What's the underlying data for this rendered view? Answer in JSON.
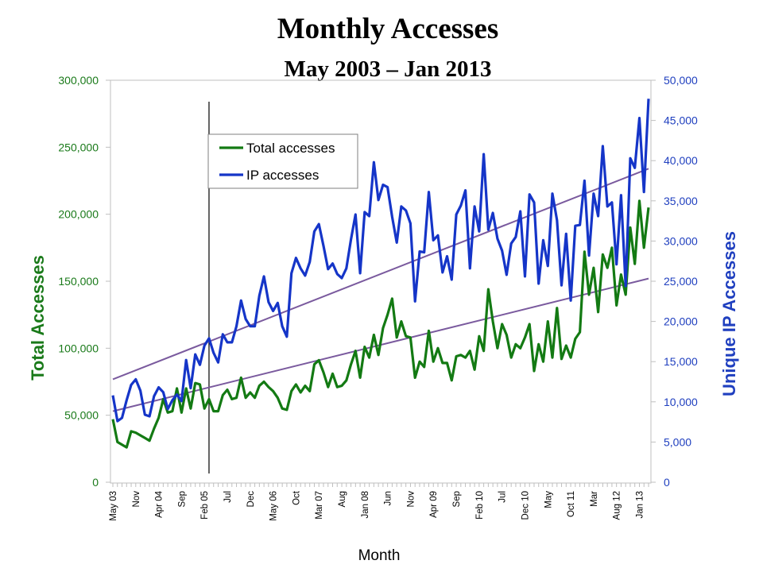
{
  "chart_data": {
    "type": "line",
    "title": "Monthly Accesses",
    "subtitle": "May 2003 – Jan 2013",
    "xlabel": "Month",
    "ylabel_left": "Total Accesses",
    "ylabel_right": "Unique IP Accesses",
    "ylim_left": [
      0,
      300000
    ],
    "ylim_right": [
      0,
      50000
    ],
    "yticks_left": [
      "0",
      "50,000",
      "100,000",
      "150,000",
      "200,000",
      "250,000",
      "300,000"
    ],
    "yticks_right": [
      "0",
      "5,000",
      "10,000",
      "15,000",
      "20,000",
      "25,000",
      "30,000",
      "35,000",
      "40,000",
      "45,000",
      "50,000"
    ],
    "x_tick_labels": [
      "May 03",
      "Nov",
      "Apr 04",
      "Sep",
      "Feb 05",
      "Jul",
      "Dec",
      "May 06",
      "Oct",
      "Mar 07",
      "Aug",
      "Jan 08",
      "Jun",
      "Nov",
      "Apr 09",
      "Sep",
      "Feb 10",
      "Jul",
      "Dec 10",
      "May",
      "Oct 11",
      "Mar",
      "Aug 12",
      "Jan 13"
    ],
    "x_tick_interval_months": 5,
    "vertical_marker_month_index": 21,
    "grid": false,
    "legend_position": "top-left",
    "series": [
      {
        "name": "Total accesses",
        "axis": "left",
        "color": "#137a13",
        "values": [
          47000,
          30000,
          28000,
          26000,
          38000,
          37000,
          35000,
          33000,
          31000,
          40000,
          48000,
          62000,
          52000,
          53000,
          70000,
          52000,
          70000,
          55000,
          74000,
          73000,
          55000,
          62000,
          53000,
          53000,
          65000,
          69000,
          62000,
          63000,
          78000,
          63000,
          67000,
          63000,
          72000,
          75000,
          71000,
          68000,
          63000,
          55000,
          54000,
          68000,
          73000,
          67000,
          72000,
          68000,
          88000,
          91000,
          82000,
          71000,
          81000,
          71000,
          72000,
          76000,
          88000,
          98000,
          78000,
          101000,
          93000,
          110000,
          95000,
          115000,
          125000,
          137000,
          108000,
          120000,
          109000,
          108000,
          78000,
          90000,
          86000,
          113000,
          90000,
          100000,
          89000,
          89000,
          76000,
          94000,
          95000,
          93000,
          98000,
          84000,
          109000,
          98000,
          144000,
          120000,
          100000,
          118000,
          110000,
          93000,
          103000,
          100000,
          108000,
          118000,
          83000,
          103000,
          90000,
          120000,
          93000,
          130000,
          92000,
          102000,
          93000,
          107000,
          112000,
          172000,
          140000,
          160000,
          127000,
          170000,
          160000,
          175000,
          132000,
          155000,
          140000,
          190000,
          163000,
          210000,
          175000,
          205000
        ],
        "trend": [
          53000,
          152000
        ]
      },
      {
        "name": "IP accesses",
        "axis": "right",
        "color": "#1535c8",
        "values": [
          10800,
          7600,
          8000,
          10200,
          12100,
          12800,
          11400,
          8400,
          8200,
          10700,
          11800,
          11200,
          9100,
          10200,
          10900,
          10100,
          15200,
          11700,
          15900,
          14600,
          17000,
          17900,
          16100,
          14900,
          18400,
          17400,
          17400,
          19400,
          22600,
          20300,
          19400,
          19400,
          23200,
          25600,
          22400,
          21300,
          22300,
          19400,
          18100,
          26000,
          27900,
          26600,
          25700,
          27400,
          31200,
          32100,
          29400,
          26500,
          27200,
          25900,
          25400,
          26600,
          30200,
          33300,
          26000,
          33600,
          33100,
          39800,
          35100,
          37000,
          36700,
          33000,
          29800,
          34300,
          33800,
          32200,
          22500,
          28700,
          28600,
          36100,
          30100,
          30700,
          26100,
          28100,
          25200,
          33300,
          34400,
          36300,
          26600,
          34300,
          31200,
          40800,
          31400,
          33500,
          30300,
          28800,
          25800,
          29700,
          30500,
          33700,
          25600,
          35800,
          34800,
          24700,
          30100,
          26900,
          35900,
          32600,
          24500,
          30900,
          22600,
          31900,
          32000,
          37500,
          28200,
          35900,
          33100,
          41800,
          34300,
          34800,
          27100,
          35700,
          24400,
          40300,
          39100,
          45300,
          36100,
          47700
        ],
        "trend": [
          12800,
          39000
        ]
      }
    ]
  }
}
